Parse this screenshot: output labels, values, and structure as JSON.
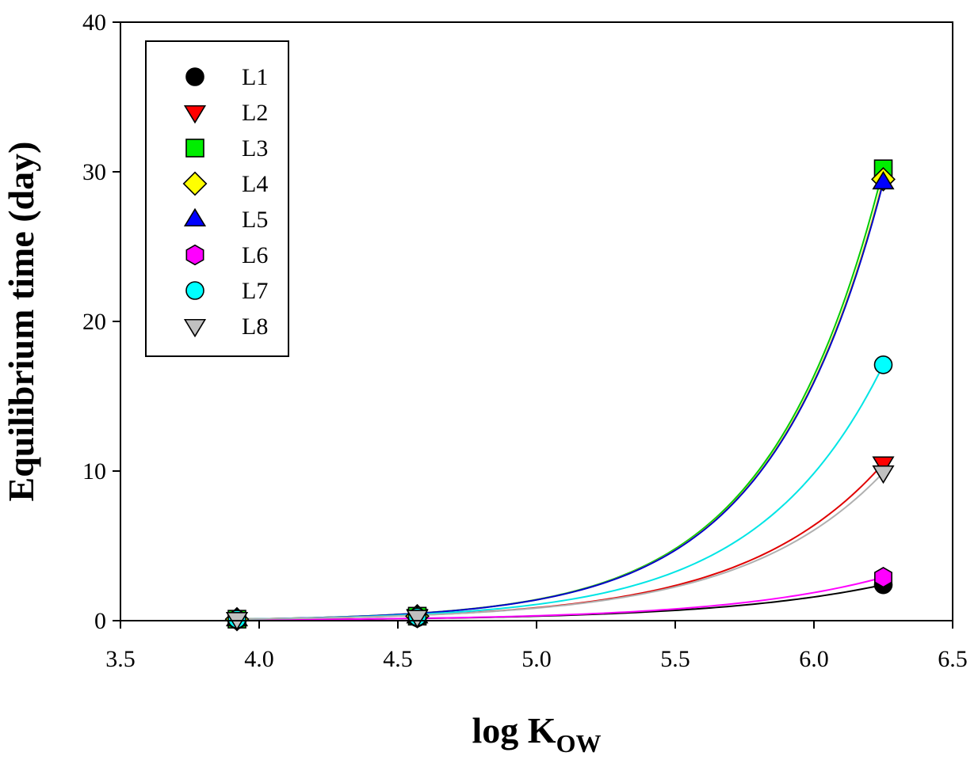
{
  "chart_data": {
    "type": "scatter",
    "xlabel": "log K",
    "xlabel_subscript": "OW",
    "ylabel": "Equilibrium time (day)",
    "xlim": [
      3.5,
      6.5
    ],
    "ylim": [
      0,
      40
    ],
    "xticks": [
      "3.5",
      "4.0",
      "4.5",
      "5.0",
      "5.5",
      "6.0",
      "6.5"
    ],
    "yticks": [
      "0",
      "10",
      "20",
      "30",
      "40"
    ],
    "x": [
      3.92,
      4.57,
      6.25
    ],
    "legend_position": "top-left",
    "grid": false,
    "series": [
      {
        "name": "L1",
        "marker": "circle",
        "color": "#000000",
        "line_color": "#000000",
        "values": [
          0.05,
          0.2,
          2.4
        ]
      },
      {
        "name": "L2",
        "marker": "triangle-down",
        "color": "#ff0000",
        "line_color": "#e00000",
        "values": [
          0.1,
          0.3,
          10.5
        ]
      },
      {
        "name": "L3",
        "marker": "square",
        "color": "#00ee00",
        "line_color": "#00cc00",
        "values": [
          0.1,
          0.3,
          30.2
        ]
      },
      {
        "name": "L4",
        "marker": "diamond",
        "color": "#ffff00",
        "line_color": "#dddd00",
        "values": [
          0.1,
          0.3,
          29.5
        ]
      },
      {
        "name": "L5",
        "marker": "triangle-up",
        "color": "#0000ff",
        "line_color": "#0000cc",
        "values": [
          0.1,
          0.3,
          29.3
        ]
      },
      {
        "name": "L6",
        "marker": "hexagon",
        "color": "#ff00ff",
        "line_color": "#ff00ff",
        "values": [
          0.05,
          0.2,
          2.9
        ]
      },
      {
        "name": "L7",
        "marker": "circle",
        "color": "#00ffff",
        "line_color": "#00e5e5",
        "values": [
          0.1,
          0.25,
          17.1
        ]
      },
      {
        "name": "L8",
        "marker": "triangle-down",
        "color": "#c0c0c0",
        "line_color": "#b0b0b0",
        "values": [
          0.1,
          0.25,
          9.9
        ]
      }
    ]
  }
}
